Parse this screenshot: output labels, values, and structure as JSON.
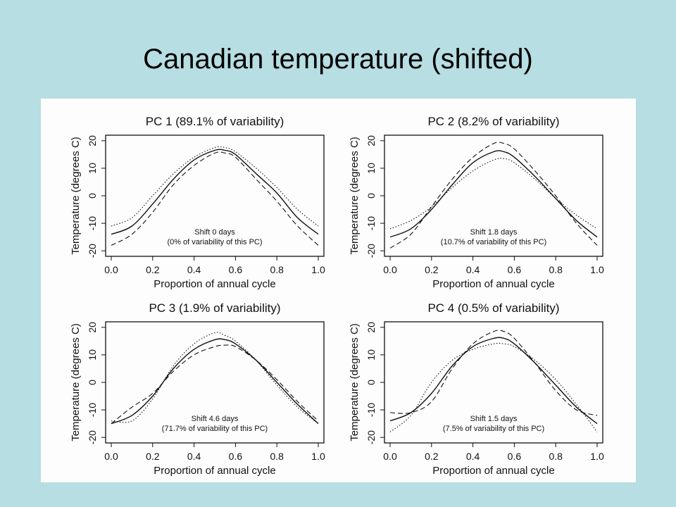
{
  "slide": {
    "title": "Canadian temperature (shifted)"
  },
  "chart_data": [
    {
      "type": "line",
      "title": "PC 1 (89.1% of variability)",
      "xlabel": "Proportion of annual cycle",
      "ylabel": "Temperature (degrees C)",
      "xlim": [
        0.0,
        1.0
      ],
      "ylim": [
        -22,
        22
      ],
      "xticks": [
        "0.0",
        "0.2",
        "0.4",
        "0.6",
        "0.8",
        "1.0"
      ],
      "yticks": [
        "-20",
        "-10",
        "0",
        "10",
        "20"
      ],
      "annotation": [
        "Shift 0 days",
        "(0% of variability of this PC)"
      ],
      "x": [
        0.0,
        0.1,
        0.2,
        0.3,
        0.4,
        0.5,
        0.55,
        0.6,
        0.7,
        0.8,
        0.9,
        1.0
      ],
      "series": [
        {
          "style": "solid",
          "values": [
            -14,
            -11,
            -3,
            6,
            13,
            16.5,
            16.5,
            15,
            8,
            1,
            -8,
            -14
          ]
        },
        {
          "style": "dashed",
          "values": [
            -18,
            -14,
            -6,
            4,
            11,
            15.5,
            15.5,
            14,
            6,
            -2,
            -11,
            -18
          ]
        },
        {
          "style": "dotted",
          "values": [
            -11,
            -8,
            0,
            8,
            14,
            17.5,
            17.5,
            16,
            10,
            3,
            -5,
            -11
          ]
        }
      ]
    },
    {
      "type": "line",
      "title": "PC 2 (8.2% of variability)",
      "xlabel": "Proportion of annual cycle",
      "ylabel": "Temperature (degrees C)",
      "xlim": [
        0.0,
        1.0
      ],
      "ylim": [
        -22,
        22
      ],
      "xticks": [
        "0.0",
        "0.2",
        "0.4",
        "0.6",
        "0.8",
        "1.0"
      ],
      "yticks": [
        "-20",
        "-10",
        "0",
        "10",
        "20"
      ],
      "annotation": [
        "Shift 1.8 days",
        "(10.7% of variability of this PC)"
      ],
      "x": [
        0.0,
        0.1,
        0.2,
        0.3,
        0.4,
        0.5,
        0.55,
        0.6,
        0.7,
        0.8,
        0.9,
        1.0
      ],
      "series": [
        {
          "style": "solid",
          "values": [
            -15,
            -12,
            -5,
            4,
            12,
            16,
            16,
            14,
            7,
            -1,
            -9,
            -15
          ]
        },
        {
          "style": "dashed",
          "values": [
            -19,
            -14,
            -4,
            6,
            14,
            19,
            19,
            17,
            9,
            0,
            -10,
            -18
          ]
        },
        {
          "style": "dotted",
          "values": [
            -12,
            -9,
            -4,
            3,
            9,
            13,
            13.5,
            12,
            6,
            -1,
            -7,
            -12
          ]
        }
      ]
    },
    {
      "type": "line",
      "title": "PC 3 (1.9% of variability)",
      "xlabel": "Proportion of annual cycle",
      "ylabel": "Temperature (degrees C)",
      "xlim": [
        0.0,
        1.0
      ],
      "ylim": [
        -22,
        22
      ],
      "xticks": [
        "0.0",
        "0.2",
        "0.4",
        "0.6",
        "0.8",
        "1.0"
      ],
      "yticks": [
        "-20",
        "-10",
        "0",
        "10",
        "20"
      ],
      "annotation": [
        "Shift 4.6 days",
        "(71.7% of variability of this PC)"
      ],
      "x": [
        0.0,
        0.1,
        0.2,
        0.3,
        0.4,
        0.5,
        0.55,
        0.6,
        0.7,
        0.8,
        0.9,
        1.0
      ],
      "series": [
        {
          "style": "solid",
          "values": [
            -15,
            -12,
            -5,
            5,
            12,
            15.5,
            15.5,
            14,
            8,
            0,
            -8,
            -15
          ]
        },
        {
          "style": "dashed",
          "values": [
            -15,
            -9,
            -4,
            4,
            10,
            13,
            13.5,
            13,
            8,
            1,
            -7,
            -14
          ]
        },
        {
          "style": "dotted",
          "values": [
            -14,
            -14,
            -6,
            6,
            14,
            18,
            17,
            15,
            8,
            -1,
            -9,
            -15
          ]
        }
      ]
    },
    {
      "type": "line",
      "title": "PC 4 (0.5% of variability)",
      "xlabel": "Proportion of annual cycle",
      "ylabel": "Temperature (degrees C)",
      "xlim": [
        0.0,
        1.0
      ],
      "ylim": [
        -22,
        22
      ],
      "xticks": [
        "0.0",
        "0.2",
        "0.4",
        "0.6",
        "0.8",
        "1.0"
      ],
      "yticks": [
        "-20",
        "-10",
        "0",
        "10",
        "20"
      ],
      "annotation": [
        "Shift 1.5 days",
        "(7.5% of variability of this PC)"
      ],
      "x": [
        0.0,
        0.1,
        0.2,
        0.3,
        0.4,
        0.5,
        0.55,
        0.6,
        0.7,
        0.8,
        0.9,
        1.0
      ],
      "series": [
        {
          "style": "solid",
          "values": [
            -14,
            -11,
            -4,
            6,
            13,
            16,
            16,
            14,
            7,
            -1,
            -9,
            -15
          ]
        },
        {
          "style": "dashed",
          "values": [
            -11,
            -11,
            -7,
            5,
            14,
            18.5,
            18.5,
            16,
            7,
            -3,
            -10,
            -12
          ]
        },
        {
          "style": "dotted",
          "values": [
            -18,
            -12,
            0,
            8,
            12,
            14,
            14,
            13,
            8,
            1,
            -8,
            -18
          ]
        }
      ]
    }
  ]
}
